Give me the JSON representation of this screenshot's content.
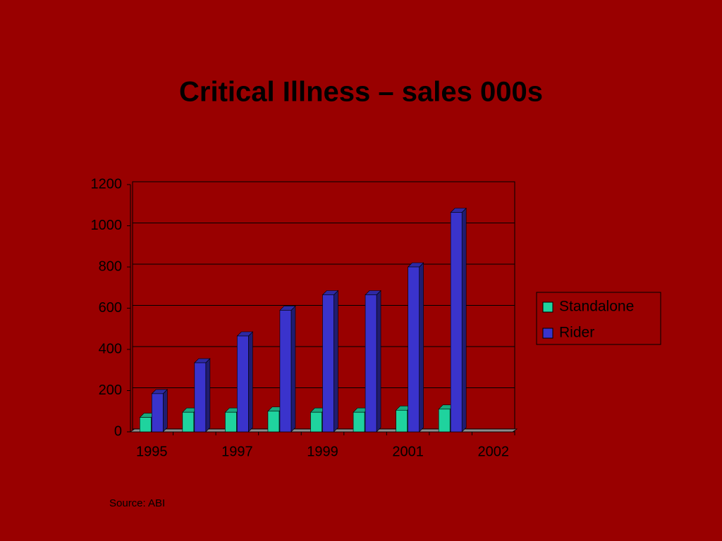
{
  "chart_data": {
    "type": "bar",
    "title": "Critical Illness – sales 000s",
    "categories": [
      "1995",
      null,
      "1997",
      null,
      "1999",
      null,
      "2001",
      null,
      "2002"
    ],
    "series": [
      {
        "name": "Standalone",
        "color": "#1fd39e",
        "values": [
          70,
          95,
          95,
          100,
          95,
          95,
          105,
          110,
          null
        ]
      },
      {
        "name": "Rider",
        "color": "#3a33cc",
        "values": [
          185,
          335,
          465,
          590,
          665,
          665,
          800,
          1065,
          null
        ]
      }
    ],
    "ylim": [
      0,
      1200
    ],
    "yticks": [
      0,
      200,
      400,
      600,
      800,
      1000,
      1200
    ],
    "grid": true,
    "legend": "right",
    "source": "Source: ABI"
  }
}
